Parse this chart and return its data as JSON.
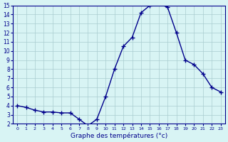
{
  "hours": [
    0,
    1,
    2,
    3,
    4,
    5,
    6,
    7,
    8,
    9,
    10,
    11,
    12,
    13,
    14,
    15,
    16,
    17,
    18,
    19,
    20,
    21,
    22,
    23
  ],
  "temperatures": [
    4,
    3.8,
    3.5,
    3.3,
    3.3,
    3.2,
    3.2,
    2.5,
    1.8,
    2.5,
    5,
    8,
    10.5,
    11.5,
    14.2,
    15.0,
    15.2,
    14.8,
    12.0,
    9.0,
    8.5,
    7.5,
    6.0,
    5.5
  ],
  "ylim": [
    2,
    15
  ],
  "yticks": [
    2,
    3,
    4,
    5,
    6,
    7,
    8,
    9,
    10,
    11,
    12,
    13,
    14,
    15
  ],
  "xticks": [
    0,
    1,
    2,
    3,
    4,
    5,
    6,
    7,
    8,
    9,
    10,
    11,
    12,
    13,
    14,
    15,
    16,
    17,
    18,
    19,
    20,
    21,
    22,
    23
  ],
  "xlabel": "Graphe des températures (°c)",
  "line_color": "#00008b",
  "marker": "+",
  "bg_color": "#d8f4f4",
  "grid_color": "#aaccd0",
  "title": ""
}
